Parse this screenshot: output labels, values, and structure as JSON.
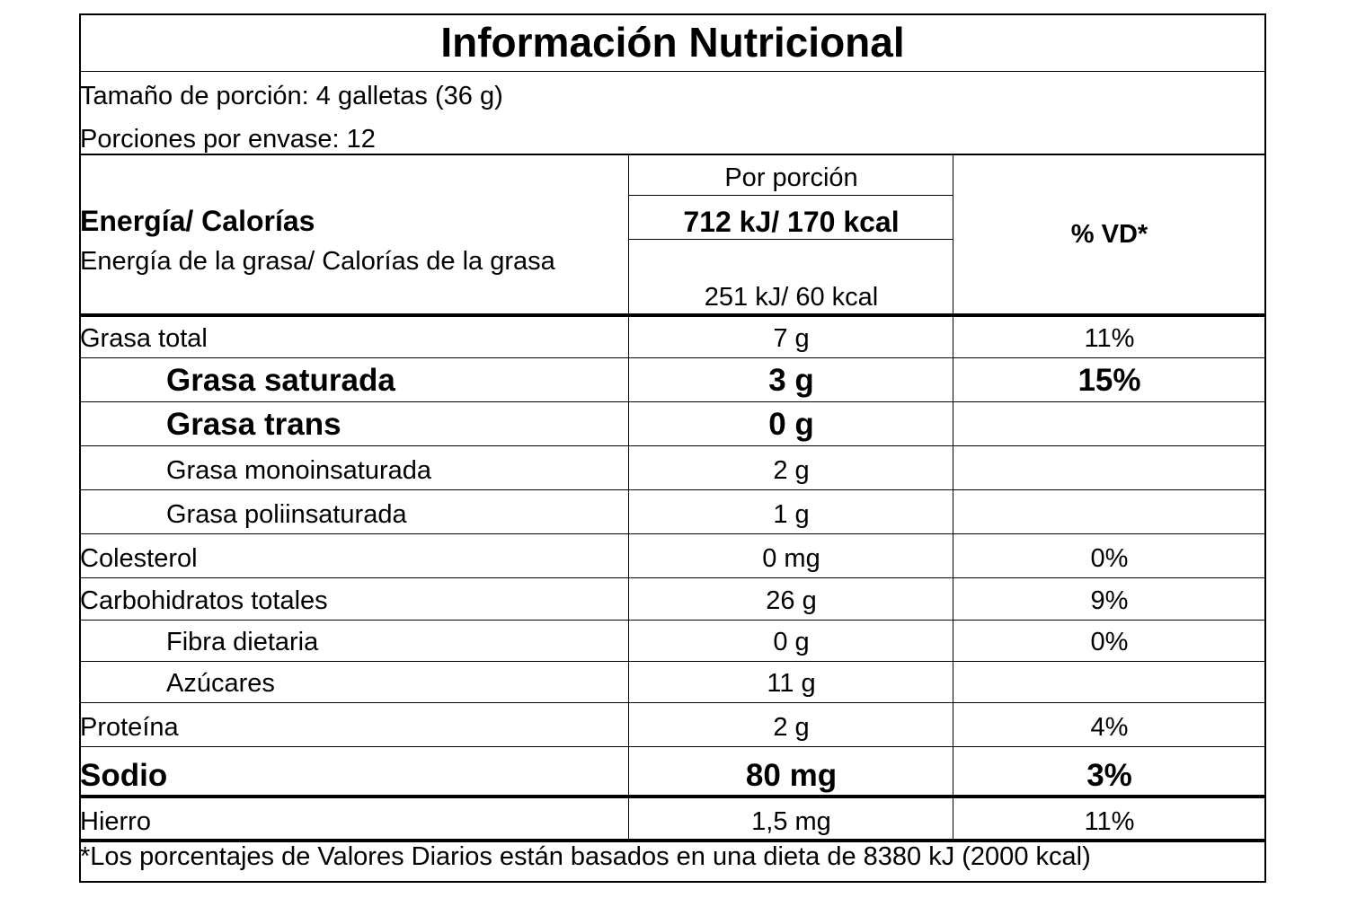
{
  "title": "Información Nutricional",
  "serving": [
    "Tamaño de porción: 4 galletas (36 g)",
    "Porciones por envase: 12"
  ],
  "header": {
    "per_serving": "Por porción",
    "dv": "% VD*"
  },
  "energy": {
    "label": "Energía/ Calorías",
    "value": "712 kJ/ 170 kcal"
  },
  "fat_energy": {
    "label": "Energía de la grasa/ Calorías de la grasa",
    "value": "251 kJ/ 60 kcal"
  },
  "rows": [
    [
      "Grasa total",
      "7 g",
      "11%"
    ],
    [
      "Grasa saturada",
      "3 g",
      "15%"
    ],
    [
      "Grasa trans",
      "0 g"
    ],
    [
      "Grasa monoinsaturada",
      "2 g"
    ],
    [
      "Grasa poliinsaturada",
      "1 g"
    ],
    [
      "Colesterol",
      "0 mg",
      "0%"
    ],
    [
      "Carbohidratos totales",
      "26 g",
      "9%"
    ],
    [
      "Fibra dietaria",
      "0 g",
      "0%"
    ],
    [
      "Azúcares",
      "11 g"
    ],
    [
      "Proteína",
      "2 g",
      "4%"
    ],
    [
      "Sodio",
      "80 mg",
      "3%"
    ],
    [
      "Hierro",
      "1,5 mg",
      "11%"
    ]
  ],
  "footnote": "*Los porcentajes de Valores Diarios están basados en una dieta de 8380 kJ (2000 kcal)"
}
